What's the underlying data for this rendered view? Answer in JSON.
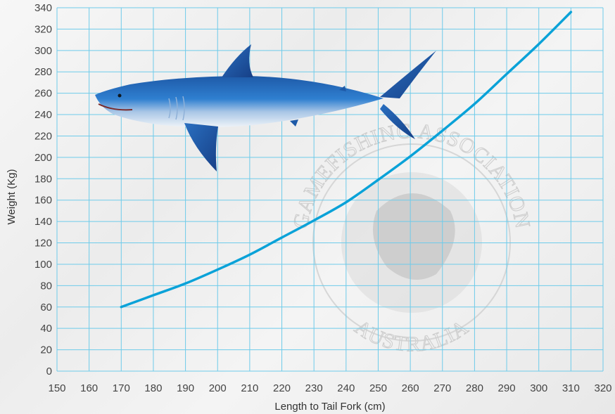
{
  "chart_data": {
    "type": "line",
    "title": "",
    "xlabel": "Length to Tail Fork (cm)",
    "ylabel": "Weight (Kg)",
    "xlim": [
      150,
      320
    ],
    "ylim": [
      0,
      340
    ],
    "x_ticks": [
      150,
      160,
      170,
      180,
      190,
      200,
      210,
      220,
      230,
      240,
      250,
      260,
      270,
      280,
      290,
      300,
      310,
      320
    ],
    "y_ticks": [
      0,
      20,
      40,
      60,
      80,
      100,
      120,
      140,
      160,
      180,
      200,
      220,
      240,
      260,
      280,
      300,
      320,
      340
    ],
    "grid": true,
    "series": [
      {
        "color": "#0aa2d8",
        "x": [
          170,
          180,
          190,
          200,
          210,
          220,
          230,
          240,
          250,
          260,
          270,
          280,
          290,
          300,
          310
        ],
        "y": [
          60,
          71,
          82,
          95,
          109,
          125,
          141,
          158,
          179,
          201,
          225,
          250,
          278,
          306,
          336
        ]
      }
    ],
    "colors": {
      "grid": "#6ecbea",
      "line": "#0aa2d8"
    }
  },
  "watermark": {
    "arc_text_top": "GAMEFISHING ASSOCIATION",
    "arc_text_bottom": "AUSTRALIA"
  },
  "illustration": {
    "icon": "mako-shark-icon"
  }
}
